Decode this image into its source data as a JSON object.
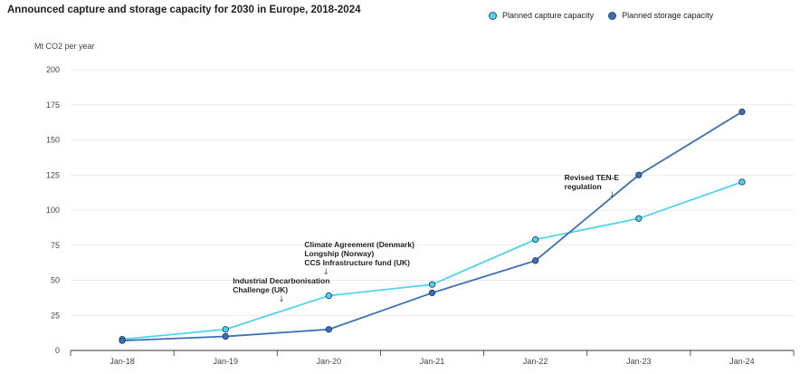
{
  "chart_data": {
    "type": "line",
    "title": "Announced capture and storage capacity for 2030 in Europe, 2018-2024",
    "ylabel": "Mt CO2 per year",
    "xlabel": "",
    "ylim": [
      0,
      200
    ],
    "yticks": [
      0,
      25,
      50,
      75,
      100,
      125,
      150,
      175,
      200
    ],
    "categories": [
      "Jan-18",
      "Jan-19",
      "Jan-20",
      "Jan-21",
      "Jan-22",
      "Jan-23",
      "Jan-24"
    ],
    "series": [
      {
        "name": "Planned capture capacity",
        "color": "#4fd3ee",
        "values": [
          8,
          15,
          39,
          47,
          79,
          94,
          120
        ]
      },
      {
        "name": "Planned storage capacity",
        "color": "#3a6fb5",
        "values": [
          7,
          10,
          15,
          41,
          64,
          125,
          170
        ]
      }
    ],
    "grid": true,
    "legend_position": "top-right",
    "annotations": [
      {
        "lines": [
          "Industrial Decarbonisation",
          "Challenge (UK)"
        ],
        "x_category": "Jan-19",
        "arrow_color": "#555555"
      },
      {
        "lines": [
          "Climate Agreement (Denmark)",
          "Longship (Norway)",
          "CCS Infrastructure fund (UK)"
        ],
        "x_category": "Jan-20",
        "arrow_color": "#4caf50"
      },
      {
        "lines": [
          "Revised TEN-E",
          "regulation"
        ],
        "x_category": "Jan-22",
        "arrow_color": "#555555"
      }
    ]
  },
  "legend": {
    "capture_label": "Planned capture capacity",
    "storage_label": "Planned storage capacity"
  }
}
